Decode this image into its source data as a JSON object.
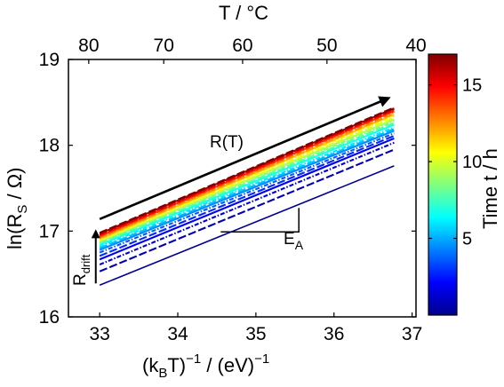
{
  "chart_data": {
    "type": "line",
    "title": "",
    "xlabel": {
      "main": "(k",
      "sub": "B",
      "mid": "T)",
      "sup1": "−1",
      "sep": " / (eV)",
      "sup2": "−1"
    },
    "ylabel": {
      "main": "ln(R",
      "sub": "S",
      "rest": " / Ω)"
    },
    "top_axis_label": "T / °C",
    "xlim": [
      32.6,
      37.05
    ],
    "ylim": [
      16,
      19
    ],
    "x_ticks": [
      33,
      34,
      35,
      36,
      37
    ],
    "y_ticks": [
      16,
      17,
      18,
      19
    ],
    "top_ticks": [
      {
        "label": "80",
        "x": 32.86
      },
      {
        "label": "70",
        "x": 33.82
      },
      {
        "label": "60",
        "x": 34.83
      },
      {
        "label": "50",
        "x": 35.91
      },
      {
        "label": "40",
        "x": 37.06
      }
    ],
    "x_range": [
      33.0,
      36.77
    ],
    "series": [
      {
        "time_h": 0.3,
        "y": [
          16.37,
          17.76
        ]
      },
      {
        "time_h": 0.8,
        "y": [
          16.53,
          17.95
        ]
      },
      {
        "time_h": 1.3,
        "y": [
          16.61,
          18.03
        ]
      },
      {
        "time_h": 2.0,
        "y": [
          16.67,
          18.08
        ]
      },
      {
        "time_h": 2.8,
        "y": [
          16.71,
          18.11
        ]
      },
      {
        "time_h": 3.6,
        "y": [
          16.75,
          18.14
        ]
      },
      {
        "time_h": 4.4,
        "y": [
          16.78,
          18.17
        ]
      },
      {
        "time_h": 5.2,
        "y": [
          16.8,
          18.19
        ]
      },
      {
        "time_h": 6.0,
        "y": [
          16.82,
          18.21
        ]
      },
      {
        "time_h": 6.8,
        "y": [
          16.84,
          18.24
        ]
      },
      {
        "time_h": 7.6,
        "y": [
          16.86,
          18.26
        ]
      },
      {
        "time_h": 8.4,
        "y": [
          16.87,
          18.28
        ]
      },
      {
        "time_h": 9.2,
        "y": [
          16.88,
          18.3
        ]
      },
      {
        "time_h": 10.0,
        "y": [
          16.89,
          18.32
        ]
      },
      {
        "time_h": 10.8,
        "y": [
          16.9,
          18.34
        ]
      },
      {
        "time_h": 11.6,
        "y": [
          16.91,
          18.36
        ]
      },
      {
        "time_h": 12.4,
        "y": [
          16.92,
          18.37
        ]
      },
      {
        "time_h": 13.2,
        "y": [
          16.93,
          18.39
        ]
      },
      {
        "time_h": 14.0,
        "y": [
          16.94,
          18.4
        ]
      },
      {
        "time_h": 14.8,
        "y": [
          16.95,
          18.41
        ]
      },
      {
        "time_h": 15.6,
        "y": [
          16.96,
          18.42
        ]
      },
      {
        "time_h": 16.4,
        "y": [
          16.97,
          18.43
        ]
      },
      {
        "time_h": 17.0,
        "y": [
          16.98,
          18.44
        ]
      }
    ],
    "colorbar": {
      "label": "Time t / h",
      "range": [
        0,
        17
      ],
      "ticks": [
        5,
        10,
        15
      ],
      "colormap": "jet"
    },
    "annotations": {
      "trend_label": "R(T)",
      "trend_arrow": {
        "from": [
          33.0,
          17.14
        ],
        "to": [
          36.7,
          18.55
        ]
      },
      "drift_label": {
        "main": "R",
        "sub": "drift"
      },
      "drift_arrow": {
        "x": 32.95,
        "from": 16.39,
        "to": 17.0
      },
      "slope_label": {
        "main": "E",
        "sub": "A"
      },
      "slope_triangle": {
        "x1": 34.55,
        "x2": 35.55,
        "y_base": 16.99,
        "y_top": 17.27
      }
    },
    "grid": false,
    "legend": "none"
  }
}
